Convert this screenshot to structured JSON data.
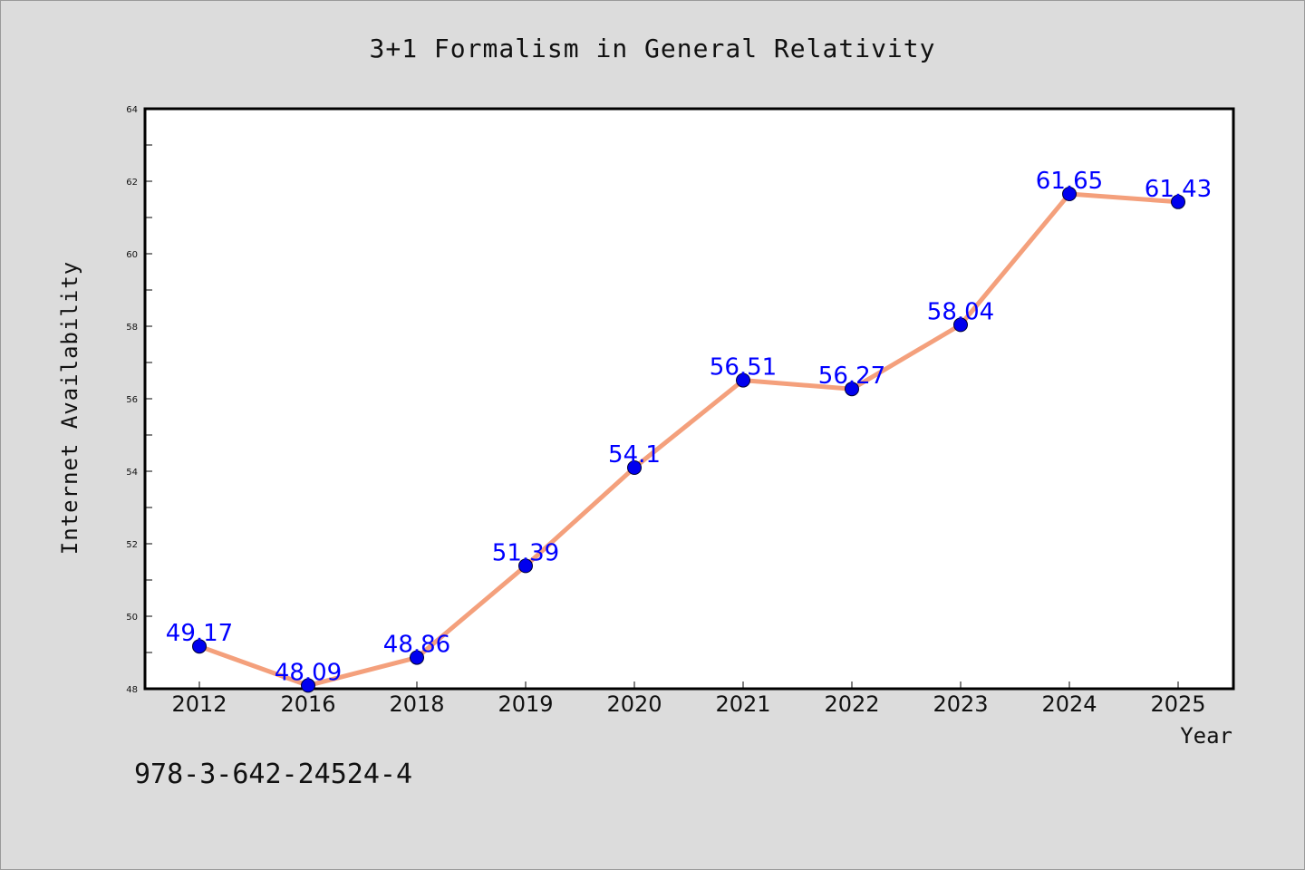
{
  "chart_data": {
    "type": "line",
    "title": "3+1 Formalism in General Relativity",
    "xlabel": "Year",
    "ylabel": "Internet Availability",
    "categories": [
      "2012",
      "2016",
      "2018",
      "2019",
      "2020",
      "2021",
      "2022",
      "2023",
      "2024",
      "2025"
    ],
    "values": [
      49.17,
      48.09,
      48.86,
      51.39,
      54.1,
      56.51,
      56.27,
      58.04,
      61.65,
      61.43
    ],
    "data_labels": [
      "49.17",
      "48.09",
      "48.86",
      "51.39",
      "54.1",
      "56.51",
      "56.27",
      "58.04",
      "61.65",
      "61.43"
    ],
    "ylim": [
      48,
      64
    ],
    "yticks": [
      48,
      50,
      52,
      54,
      56,
      58,
      60,
      62,
      64
    ],
    "grid": false,
    "legend": "none",
    "colors": {
      "line": "#f4a07c",
      "marker": "#0000ee",
      "data_label": "#0000ff"
    }
  },
  "footnote": "978-3-642-24524-4"
}
